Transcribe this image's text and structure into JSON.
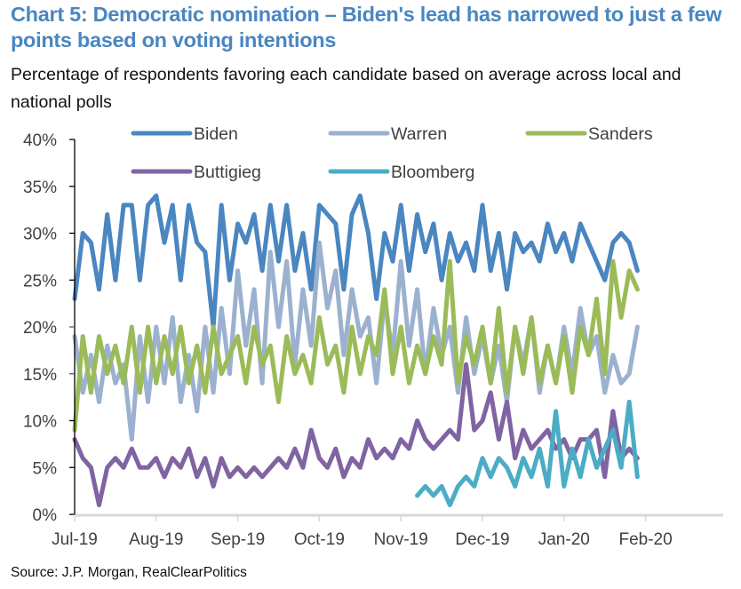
{
  "chart_data": {
    "type": "line",
    "title": "Chart 5: Democratic nomination – Biden's lead has narrowed to just a few points based on voting intentions",
    "subtitle": "Percentage of respondents favoring each candidate based on average across local and national polls",
    "source": "Source: J.P. Morgan, RealClearPolitics",
    "xlabel": "",
    "ylabel": "",
    "ylim": [
      0,
      40
    ],
    "yticks": [
      0,
      5,
      10,
      15,
      20,
      25,
      30,
      35,
      40
    ],
    "ytick_labels": [
      "0%",
      "5%",
      "10%",
      "15%",
      "20%",
      "25%",
      "30%",
      "35%",
      "40%"
    ],
    "xlim_months": [
      0,
      7.8
    ],
    "xticks": [
      0,
      1,
      2,
      3,
      4,
      5,
      6,
      7
    ],
    "xtick_labels": [
      "Jul-19",
      "Aug-19",
      "Sep-19",
      "Oct-19",
      "Nov-19",
      "Dec-19",
      "Jan-20",
      "Feb-20"
    ],
    "x_units": "months since 1-Jul-2019",
    "grid": false,
    "legend": {
      "placement": "top",
      "columns": 3
    },
    "series": [
      {
        "name": "Biden",
        "color": "#4a86c0",
        "x": [
          0.0,
          0.1,
          0.2,
          0.3,
          0.4,
          0.5,
          0.6,
          0.7,
          0.8,
          0.9,
          1.0,
          1.1,
          1.2,
          1.3,
          1.4,
          1.5,
          1.6,
          1.7,
          1.8,
          1.9,
          2.0,
          2.1,
          2.2,
          2.3,
          2.4,
          2.5,
          2.6,
          2.7,
          2.8,
          2.9,
          3.0,
          3.1,
          3.2,
          3.3,
          3.4,
          3.5,
          3.6,
          3.7,
          3.8,
          3.9,
          4.0,
          4.1,
          4.2,
          4.3,
          4.4,
          4.5,
          4.6,
          4.7,
          4.8,
          4.9,
          5.0,
          5.1,
          5.2,
          5.3,
          5.4,
          5.5,
          5.6,
          5.7,
          5.8,
          5.9,
          6.0,
          6.1,
          6.2,
          6.3,
          6.4,
          6.5,
          6.6,
          6.7,
          6.8,
          6.9
        ],
        "values": [
          23,
          30,
          29,
          24,
          32,
          25,
          33,
          33,
          25,
          33,
          34,
          29,
          33,
          25,
          33,
          29,
          28,
          20,
          33,
          25,
          31,
          29,
          32,
          26,
          33,
          27,
          33,
          26,
          30,
          24,
          33,
          32,
          31,
          24,
          32,
          34,
          30,
          23,
          30,
          27,
          33,
          26,
          32,
          28,
          31,
          25,
          30,
          27,
          29,
          26,
          33,
          26,
          30,
          24,
          30,
          28,
          29,
          27,
          31,
          28,
          30,
          27,
          31,
          29,
          27,
          25,
          29,
          30,
          29,
          26
        ],
        "note": "values approximate, read from chart"
      },
      {
        "name": "Warren",
        "color": "#9bb1cf",
        "x": [
          0.0,
          0.1,
          0.2,
          0.3,
          0.4,
          0.5,
          0.6,
          0.7,
          0.8,
          0.9,
          1.0,
          1.1,
          1.2,
          1.3,
          1.4,
          1.5,
          1.6,
          1.7,
          1.8,
          1.9,
          2.0,
          2.1,
          2.2,
          2.3,
          2.4,
          2.5,
          2.6,
          2.7,
          2.8,
          2.9,
          3.0,
          3.1,
          3.2,
          3.3,
          3.4,
          3.5,
          3.6,
          3.7,
          3.8,
          3.9,
          4.0,
          4.1,
          4.2,
          4.3,
          4.4,
          4.5,
          4.6,
          4.7,
          4.8,
          4.9,
          5.0,
          5.1,
          5.2,
          5.3,
          5.4,
          5.5,
          5.6,
          5.7,
          5.8,
          5.9,
          6.0,
          6.1,
          6.2,
          6.3,
          6.4,
          6.5,
          6.6,
          6.7,
          6.8,
          6.9
        ],
        "values": [
          19,
          13,
          17,
          12,
          18,
          14,
          16,
          8,
          19,
          12,
          20,
          14,
          21,
          12,
          17,
          11,
          20,
          13,
          22,
          15,
          26,
          18,
          24,
          14,
          28,
          20,
          27,
          16,
          24,
          18,
          29,
          22,
          26,
          17,
          24,
          19,
          21,
          14,
          23,
          17,
          27,
          18,
          24,
          15,
          22,
          17,
          20,
          13,
          21,
          15,
          19,
          14,
          18,
          12,
          20,
          16,
          21,
          13,
          18,
          14,
          20,
          15,
          22,
          17,
          19,
          13,
          17,
          14,
          15,
          20
        ],
        "note": "values approximate, read from chart"
      },
      {
        "name": "Sanders",
        "color": "#9bbb59",
        "x": [
          0.0,
          0.1,
          0.2,
          0.3,
          0.4,
          0.5,
          0.6,
          0.7,
          0.8,
          0.9,
          1.0,
          1.1,
          1.2,
          1.3,
          1.4,
          1.5,
          1.6,
          1.7,
          1.8,
          1.9,
          2.0,
          2.1,
          2.2,
          2.3,
          2.4,
          2.5,
          2.6,
          2.7,
          2.8,
          2.9,
          3.0,
          3.1,
          3.2,
          3.3,
          3.4,
          3.5,
          3.6,
          3.7,
          3.8,
          3.9,
          4.0,
          4.1,
          4.2,
          4.3,
          4.4,
          4.5,
          4.6,
          4.7,
          4.8,
          4.9,
          5.0,
          5.1,
          5.2,
          5.3,
          5.4,
          5.5,
          5.6,
          5.7,
          5.8,
          5.9,
          6.0,
          6.1,
          6.2,
          6.3,
          6.4,
          6.5,
          6.6,
          6.7,
          6.8,
          6.9
        ],
        "values": [
          9,
          19,
          13,
          19,
          15,
          18,
          14,
          20,
          13,
          20,
          14,
          19,
          15,
          20,
          14,
          18,
          13,
          20,
          15,
          17,
          19,
          14,
          20,
          16,
          18,
          12,
          19,
          15,
          17,
          14,
          21,
          16,
          18,
          13,
          20,
          15,
          19,
          17,
          24,
          15,
          20,
          14,
          18,
          15,
          19,
          16,
          27,
          14,
          19,
          16,
          20,
          14,
          22,
          13,
          20,
          15,
          21,
          14,
          18,
          14,
          19,
          13,
          20,
          17,
          23,
          15,
          27,
          21,
          26,
          24
        ],
        "note": "values approximate, read from chart"
      },
      {
        "name": "Buttigieg",
        "color": "#8064a2",
        "x": [
          0.0,
          0.1,
          0.2,
          0.3,
          0.4,
          0.5,
          0.6,
          0.7,
          0.8,
          0.9,
          1.0,
          1.1,
          1.2,
          1.3,
          1.4,
          1.5,
          1.6,
          1.7,
          1.8,
          1.9,
          2.0,
          2.1,
          2.2,
          2.3,
          2.4,
          2.5,
          2.6,
          2.7,
          2.8,
          2.9,
          3.0,
          3.1,
          3.2,
          3.3,
          3.4,
          3.5,
          3.6,
          3.7,
          3.8,
          3.9,
          4.0,
          4.1,
          4.2,
          4.3,
          4.4,
          4.5,
          4.6,
          4.7,
          4.8,
          4.9,
          5.0,
          5.1,
          5.2,
          5.3,
          5.4,
          5.5,
          5.6,
          5.7,
          5.8,
          5.9,
          6.0,
          6.1,
          6.2,
          6.3,
          6.4,
          6.5,
          6.6,
          6.7,
          6.8,
          6.9
        ],
        "values": [
          8,
          6,
          5,
          1,
          5,
          6,
          5,
          7,
          5,
          5,
          6,
          4,
          6,
          5,
          7,
          4,
          6,
          3,
          6,
          4,
          5,
          4,
          5,
          4,
          5,
          6,
          5,
          7,
          5,
          9,
          6,
          5,
          7,
          4,
          6,
          5,
          8,
          6,
          7,
          6,
          8,
          7,
          10,
          8,
          7,
          8,
          9,
          8,
          16,
          9,
          10,
          13,
          8,
          12,
          6,
          9,
          7,
          8,
          9,
          7,
          8,
          6,
          8,
          8,
          9,
          4,
          11,
          6,
          7,
          6
        ],
        "note": "values approximate, read from chart"
      },
      {
        "name": "Bloomberg",
        "color": "#4bacc6",
        "x": [
          4.2,
          4.3,
          4.4,
          4.5,
          4.6,
          4.7,
          4.8,
          4.9,
          5.0,
          5.1,
          5.2,
          5.3,
          5.4,
          5.5,
          5.6,
          5.7,
          5.8,
          5.9,
          6.0,
          6.1,
          6.2,
          6.3,
          6.4,
          6.5,
          6.6,
          6.7,
          6.8,
          6.9
        ],
        "values": [
          2,
          3,
          2,
          3,
          1,
          3,
          4,
          3,
          6,
          4,
          6,
          5,
          3,
          6,
          4,
          7,
          3,
          11,
          3,
          7,
          4,
          8,
          5,
          7,
          9,
          5,
          12,
          4
        ],
        "note": "values approximate, read from chart"
      }
    ]
  }
}
